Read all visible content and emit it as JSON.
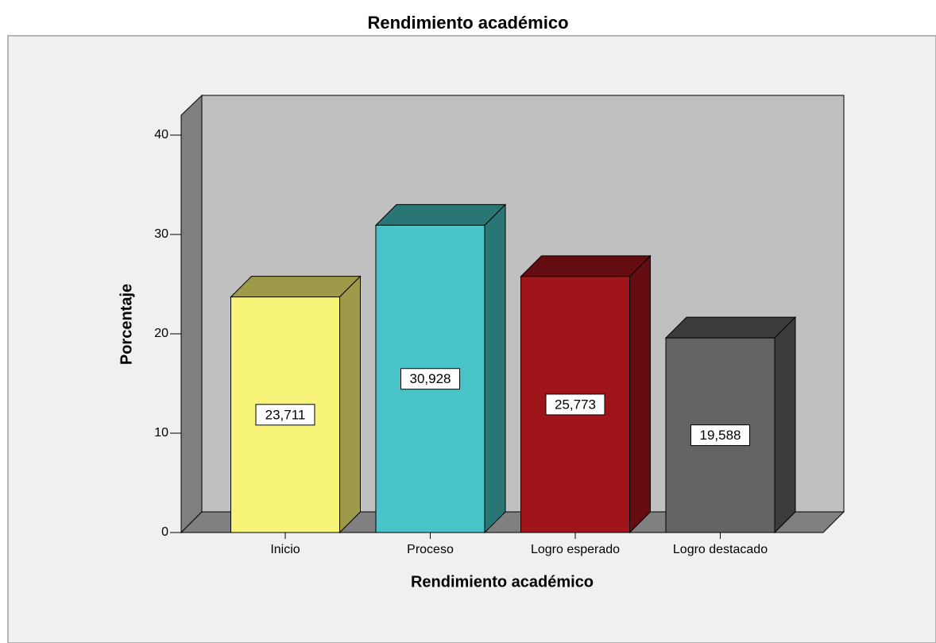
{
  "chart_data": {
    "type": "bar3d",
    "title": "Rendimiento académico",
    "x_label": "Rendimiento académico",
    "y_label": "Porcentaje",
    "categories": [
      "Inicio",
      "Proceso",
      "Logro esperado",
      "Logro destacado"
    ],
    "values": [
      23.711,
      30.928,
      25.773,
      19.588
    ],
    "value_labels": [
      "23,711",
      "30,928",
      "25,773",
      "19,588"
    ],
    "colors": [
      "#f8f47a",
      "#48c3c8",
      "#a0151a",
      "#646464"
    ],
    "side_colors": [
      "#9e9a4a",
      "#2a7675",
      "#650c10",
      "#3c3c3c"
    ],
    "ylim": [
      0,
      42
    ],
    "yticks": [
      0,
      10,
      20,
      30,
      40
    ]
  }
}
